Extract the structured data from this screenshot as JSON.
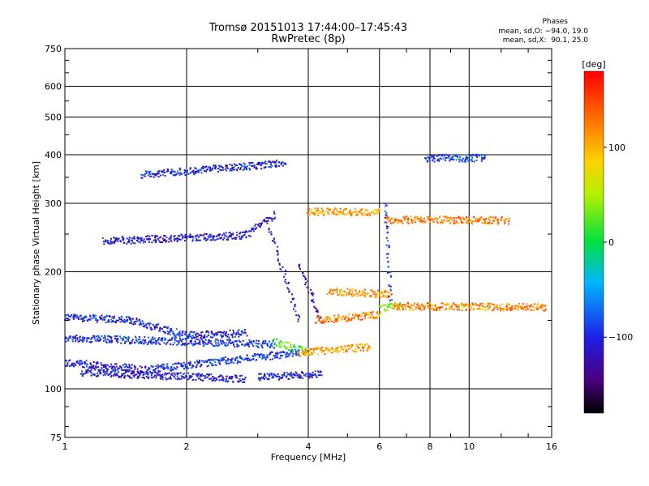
{
  "header": {
    "title_line1": "Tromsø 20151013 17:44:00–17:45:43",
    "title_line2": "RwPretec (8p)",
    "phases_heading": "Phases",
    "phases_o": "mean, sd,O: −94.0, 19.0",
    "phases_x": "mean, sd,X:  90.1, 25.0"
  },
  "colorbar": {
    "unit_label": "[deg]",
    "tick_labels": [
      "100",
      "0",
      "−100"
    ],
    "tick_values": [
      100,
      0,
      -100
    ],
    "range": [
      -180,
      180
    ],
    "colormap": "rainbow (black-purple-blue-cyan-green-yellow-orange-red)"
  },
  "chart_data": {
    "type": "scatter",
    "title": "Tromsø 20151013 17:44:00–17:45:43",
    "subtitle": "RwPretec (8p)",
    "xlabel": "Frequency [MHz]",
    "ylabel": "Stationary phase Virtual Height [km]",
    "xscale": "log",
    "yscale": "log",
    "xlim": [
      1,
      16
    ],
    "ylim": [
      75,
      750
    ],
    "x_ticks": [
      1,
      2,
      4,
      6,
      8,
      10,
      16
    ],
    "x_tick_labels": [
      "1",
      "2",
      "4",
      "6",
      "8",
      "10",
      "16"
    ],
    "y_ticks": [
      75,
      100,
      200,
      300,
      400,
      500,
      600,
      750
    ],
    "y_tick_labels": [
      "75",
      "100",
      "200",
      "300",
      "400",
      "500",
      "600",
      "750"
    ],
    "grid": true,
    "traces": [
      {
        "x": [
          1.0,
          1.45
        ],
        "y": [
          153,
          150
        ],
        "phase": -100
      },
      {
        "x": [
          1.45,
          2.0
        ],
        "y": [
          150,
          137
        ],
        "phase": -100
      },
      {
        "x": [
          2.0,
          2.8
        ],
        "y": [
          137,
          139
        ],
        "phase": -105
      },
      {
        "x": [
          1.0,
          3.3
        ],
        "y": [
          135,
          130
        ],
        "phase": -95
      },
      {
        "x": [
          3.3,
          4.0
        ],
        "y": [
          132,
          124
        ],
        "phase": 20
      },
      {
        "x": [
          1.0,
          1.6
        ],
        "y": [
          117,
          112
        ],
        "phase": -110
      },
      {
        "x": [
          1.6,
          3.8
        ],
        "y": [
          112,
          124
        ],
        "phase": -95
      },
      {
        "x": [
          3.8,
          5.7
        ],
        "y": [
          124,
          128
        ],
        "phase": 110
      },
      {
        "x": [
          1.1,
          2.8
        ],
        "y": [
          110,
          106
        ],
        "phase": -110
      },
      {
        "x": [
          3.0,
          4.3
        ],
        "y": [
          107,
          109
        ],
        "phase": -105
      },
      {
        "x": [
          1.25,
          2.8
        ],
        "y": [
          240,
          248
        ],
        "phase": -110
      },
      {
        "x": [
          2.8,
          3.3
        ],
        "y": [
          248,
          280
        ],
        "phase": -110
      },
      {
        "x": [
          1.55,
          3.5
        ],
        "y": [
          355,
          380
        ],
        "phase": -100
      },
      {
        "x": [
          3.2,
          3.8
        ],
        "y": [
          260,
          150
        ],
        "phase": -110
      },
      {
        "x": [
          3.8,
          4.3
        ],
        "y": [
          210,
          150
        ],
        "phase": -115
      },
      {
        "x": [
          4.5,
          6.4
        ],
        "y": [
          178,
          175
        ],
        "phase": 110
      },
      {
        "x": [
          4.2,
          6.0
        ],
        "y": [
          150,
          155
        ],
        "phase": 120
      },
      {
        "x": [
          6.0,
          6.8
        ],
        "y": [
          160,
          165
        ],
        "phase": 40
      },
      {
        "x": [
          6.5,
          15.5
        ],
        "y": [
          163,
          162
        ],
        "phase": 120
      },
      {
        "x": [
          6.2,
          12.5
        ],
        "y": [
          272,
          271
        ],
        "phase": 125
      },
      {
        "x": [
          4.0,
          6.0
        ],
        "y": [
          285,
          285
        ],
        "phase": 110
      },
      {
        "x": [
          7.8,
          11.0
        ],
        "y": [
          392,
          392
        ],
        "phase": -90
      },
      {
        "x": [
          6.2,
          6.4
        ],
        "y": [
          300,
          170
        ],
        "phase": -100
      }
    ]
  }
}
